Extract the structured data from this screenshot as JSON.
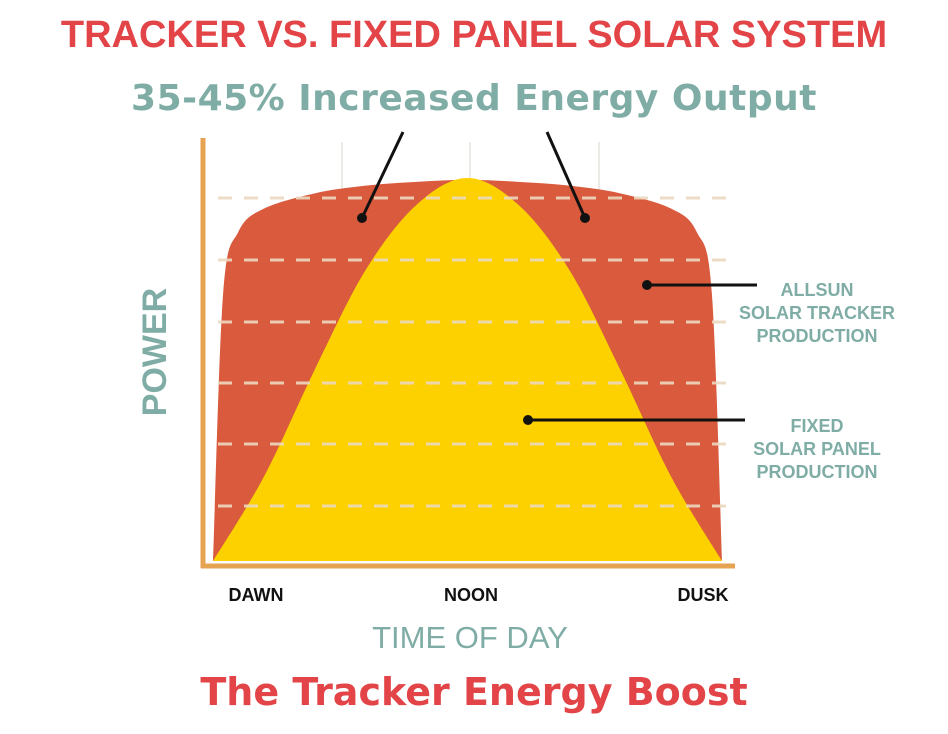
{
  "header": {
    "title": "TRACKER VS. FIXED PANEL SOLAR SYSTEM",
    "subtitle": "35-45% Increased Energy Output"
  },
  "footer": {
    "caption": "The Tracker Energy Boost"
  },
  "colors": {
    "title": "#e24447",
    "teal": "#7fada6",
    "tracker": "#d95a3c",
    "fixed": "#fdd000",
    "axis": "#e6a352",
    "grid": "#ecd9bf"
  },
  "chart_data": {
    "type": "area",
    "xlabel": "TIME OF DAY",
    "ylabel": "POWER",
    "x_tick_labels": [
      "DAWN",
      "NOON",
      "DUSK"
    ],
    "xlim": [
      0,
      1
    ],
    "ylim": [
      0,
      1
    ],
    "grid": true,
    "series": [
      {
        "name": "ALLSUN SOLAR TRACKER PRODUCTION",
        "color": "#d95a3c",
        "x": [
          0,
          0.02,
          0.05,
          0.1,
          0.2,
          0.3,
          0.4,
          0.5,
          0.6,
          0.7,
          0.8,
          0.9,
          0.95,
          0.98,
          1
        ],
        "y": [
          0,
          0.7,
          0.86,
          0.92,
          0.96,
          0.98,
          0.99,
          0.995,
          0.99,
          0.98,
          0.96,
          0.92,
          0.86,
          0.7,
          0
        ]
      },
      {
        "name": "FIXED SOLAR PANEL PRODUCTION",
        "color": "#fdd000",
        "x": [
          0,
          0.1,
          0.2,
          0.3,
          0.4,
          0.5,
          0.6,
          0.7,
          0.8,
          0.9,
          1
        ],
        "y": [
          0,
          0.22,
          0.5,
          0.76,
          0.93,
          1.0,
          0.93,
          0.76,
          0.5,
          0.22,
          0
        ]
      }
    ],
    "annotations": {
      "tracker_lines": [
        "ALLSUN",
        "SOLAR TRACKER",
        "PRODUCTION"
      ],
      "fixed_lines": [
        "FIXED",
        "SOLAR PANEL",
        "PRODUCTION"
      ]
    }
  }
}
